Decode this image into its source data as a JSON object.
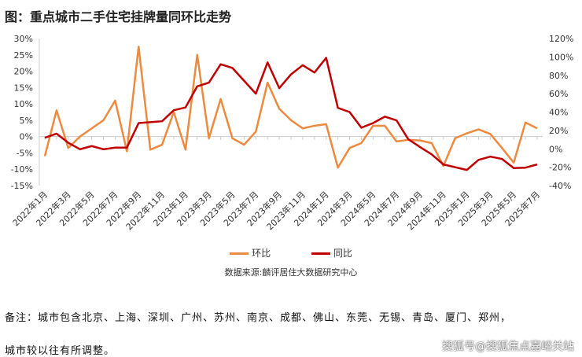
{
  "title": "图：重点城市二手住宅挂牌量同环比走势",
  "chart_data": {
    "type": "line",
    "title": "图：重点城市二手住宅挂牌量同环比走势",
    "x": [
      "2022年1月",
      "2022年2月",
      "2022年3月",
      "2022年4月",
      "2022年5月",
      "2022年6月",
      "2022年7月",
      "2022年8月",
      "2022年9月",
      "2022年10月",
      "2022年11月",
      "2022年12月",
      "2023年1月",
      "2023年2月",
      "2023年3月",
      "2023年4月",
      "2023年5月",
      "2023年6月",
      "2023年7月",
      "2023年8月",
      "2023年9月",
      "2023年10月",
      "2023年11月",
      "2023年12月",
      "2024年1月",
      "2024年2月",
      "2024年3月",
      "2024年4月",
      "2024年5月",
      "2024年6月",
      "2024年7月",
      "2024年8月",
      "2024年9月",
      "2024年10月",
      "2024年11月",
      "2024年12月",
      "2025年1月",
      "2025年2月",
      "2025年3月",
      "2025年4月",
      "2025年5月",
      "2025年6月",
      "2025年7月"
    ],
    "x_tick_labels": [
      "2022年1月",
      "2022年3月",
      "2022年5月",
      "2022年7月",
      "2022年9月",
      "2022年11月",
      "2023年1月",
      "2023年3月",
      "2023年5月",
      "2023年7月",
      "2023年9月",
      "2023年11月",
      "2024年1月",
      "2024年3月",
      "2024年5月",
      "2024年7月",
      "2024年9月",
      "2024年11月",
      "2025年1月",
      "2025年3月",
      "2025年5月",
      "2025年7月"
    ],
    "y_left_ticks": [
      "30%",
      "25%",
      "20%",
      "15%",
      "10%",
      "5%",
      "0%",
      "-5%",
      "-10%",
      "-15%"
    ],
    "y_right_ticks": [
      "120%",
      "100%",
      "80%",
      "60%",
      "40%",
      "20%",
      "0%",
      "-20%",
      "-40%"
    ],
    "ylim_left": [
      -15,
      30
    ],
    "ylim_right": [
      -40,
      120
    ],
    "series": [
      {
        "name": "环比",
        "axis": "left",
        "color": "#ED8A3F",
        "values": [
          -6,
          8,
          -3.5,
          0,
          2.5,
          5,
          11,
          -4.5,
          27.5,
          -4,
          -2.5,
          7.5,
          -4,
          25,
          -0.5,
          11.5,
          -0.5,
          -2.5,
          1.5,
          16.5,
          8.5,
          5,
          2.5,
          3.3,
          3.8,
          -9.5,
          -3.5,
          -2,
          3.3,
          3.3,
          -1.5,
          -1,
          -1.2,
          -2,
          -9,
          -0.5,
          1,
          2.2,
          0.8,
          -3.5,
          -8,
          4.3,
          2.5
        ]
      },
      {
        "name": "同比",
        "axis": "right",
        "color": "#C00000",
        "values": [
          12,
          16.5,
          6.6,
          -0.5,
          3,
          -0.5,
          1.3,
          1.3,
          28,
          29,
          30,
          42,
          45,
          68,
          72,
          92,
          88,
          74,
          60,
          94,
          66,
          81,
          91,
          83,
          99,
          44.5,
          40,
          23,
          28,
          35,
          31,
          10.5,
          2,
          -6,
          -17,
          -20,
          -23,
          -12,
          -8.5,
          -11,
          -21,
          -20.5,
          -17
        ]
      }
    ],
    "legend": "bottom",
    "grid": false
  },
  "source": "数据来源:麟评居住大数据研究中心",
  "note_line1": "备注：城市包含北京、上海、深圳、广州、苏州、南京、成都、佛山、东莞、无锡、青岛、厦门、郑州，",
  "note_line2": "城市较以往有所调整。",
  "watermark": "搜狐号@搜狐焦点嘉峪关站"
}
